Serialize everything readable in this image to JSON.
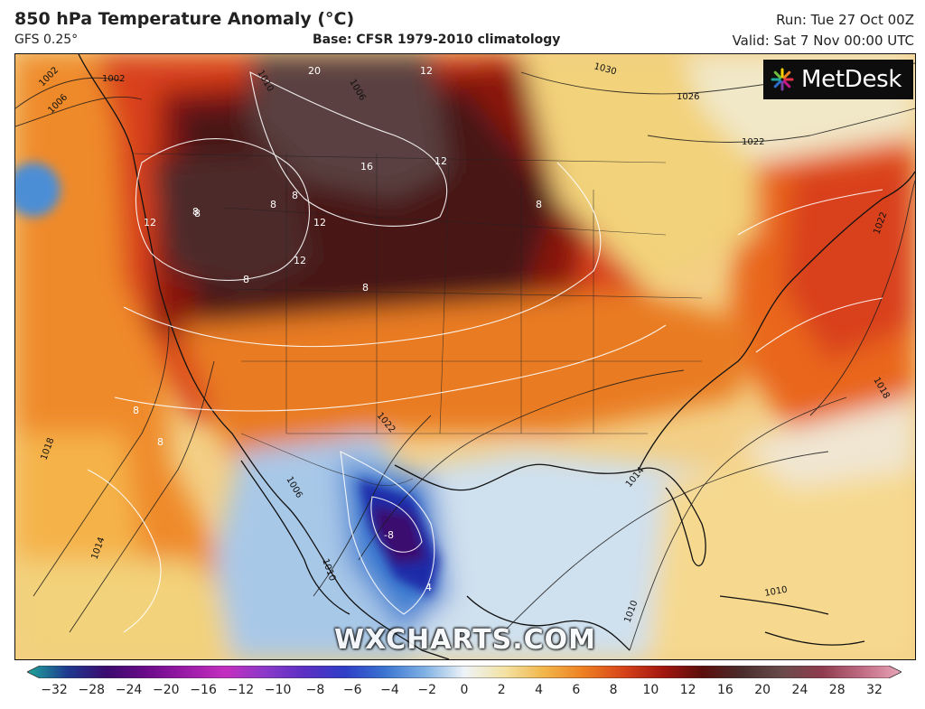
{
  "header": {
    "title": "850 hPa Temperature Anomaly (°C)",
    "model": "GFS 0.25°",
    "base": "Base: CFSR 1979-2010 climatology",
    "run": "Run: Tue 27 Oct 00Z",
    "valid": "Valid: Sat 7 Nov 00:00 UTC"
  },
  "logo": {
    "text": "MetDesk",
    "icon": "metdesk-starburst-icon"
  },
  "watermark": "WXCHARTS.COM",
  "map": {
    "anomaly_labels": [
      "20",
      "12",
      "16",
      "12",
      "8",
      "8",
      "8",
      "12",
      "8",
      "12",
      "12",
      "8",
      "8",
      "8",
      "8",
      "8",
      "-8",
      "4"
    ],
    "isobar_labels": [
      "1002",
      "1002",
      "1006",
      "1006",
      "1010",
      "1026",
      "1022",
      "1030",
      "1022",
      "1018",
      "1018",
      "1014",
      "1014",
      "1010",
      "1010",
      "1006",
      "1010",
      "1022"
    ]
  },
  "colorbar": {
    "ticks": [
      "-32",
      "-28",
      "-24",
      "-20",
      "-16",
      "-12",
      "-10",
      "-8",
      "-6",
      "-4",
      "-2",
      "0",
      "2",
      "4",
      "6",
      "8",
      "10",
      "12",
      "16",
      "20",
      "24",
      "28",
      "32"
    ],
    "colors": [
      "#1fa89a",
      "#1e3a8f",
      "#3b0a6e",
      "#6b0a8a",
      "#9b1aa8",
      "#c42fbf",
      "#8a39c9",
      "#5a2fc4",
      "#2f3ec7",
      "#3a74d1",
      "#7fb0e3",
      "#eef3f8",
      "#f3e3a6",
      "#f2b64a",
      "#ee7f22",
      "#d7441a",
      "#a3160f",
      "#5a0e0c",
      "#4b2d2d",
      "#6a4b4b",
      "#8f3b4e",
      "#c06b84",
      "#e9a6b8"
    ]
  }
}
